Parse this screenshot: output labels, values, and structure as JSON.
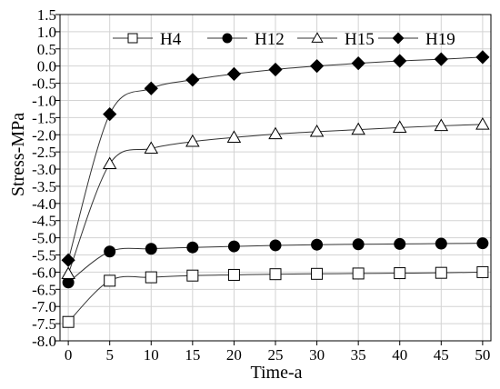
{
  "chart_data": {
    "type": "line",
    "title": "",
    "xlabel": "Time-a",
    "ylabel": "Stress-MPa",
    "xlim": [
      -1,
      51
    ],
    "ylim": [
      -8.0,
      1.5
    ],
    "grid": true,
    "legend_position": "top",
    "x_ticks": [
      "0",
      "5",
      "10",
      "15",
      "20",
      "25",
      "30",
      "35",
      "40",
      "45",
      "50"
    ],
    "y_ticks": [
      "1.5",
      "1.0",
      "0.5",
      "0.0",
      "-0.5",
      "-1.0",
      "-1.5",
      "-2.0",
      "-2.5",
      "-3.0",
      "-3.5",
      "-4.0",
      "-4.5",
      "-5.0",
      "-5.5",
      "-6.0",
      "-6.5",
      "-7.0",
      "-7.5",
      "-8.0"
    ],
    "x": [
      0,
      5,
      10,
      15,
      20,
      25,
      30,
      35,
      40,
      45,
      50
    ],
    "series": [
      {
        "name": "H4",
        "marker": "square-open",
        "values": [
          -7.45,
          -6.25,
          -6.15,
          -6.1,
          -6.08,
          -6.06,
          -6.05,
          -6.04,
          -6.03,
          -6.02,
          -6.0
        ]
      },
      {
        "name": "H12",
        "marker": "circle-filled",
        "values": [
          -6.3,
          -5.4,
          -5.32,
          -5.28,
          -5.25,
          -5.22,
          -5.2,
          -5.19,
          -5.18,
          -5.17,
          -5.16
        ]
      },
      {
        "name": "H15",
        "marker": "triangle-open",
        "values": [
          -6.05,
          -2.85,
          -2.4,
          -2.2,
          -2.08,
          -1.98,
          -1.91,
          -1.85,
          -1.79,
          -1.74,
          -1.7
        ]
      },
      {
        "name": "H19",
        "marker": "diamond-filled",
        "values": [
          -5.65,
          -1.4,
          -0.65,
          -0.4,
          -0.23,
          -0.1,
          0.0,
          0.08,
          0.15,
          0.2,
          0.26
        ]
      }
    ]
  }
}
